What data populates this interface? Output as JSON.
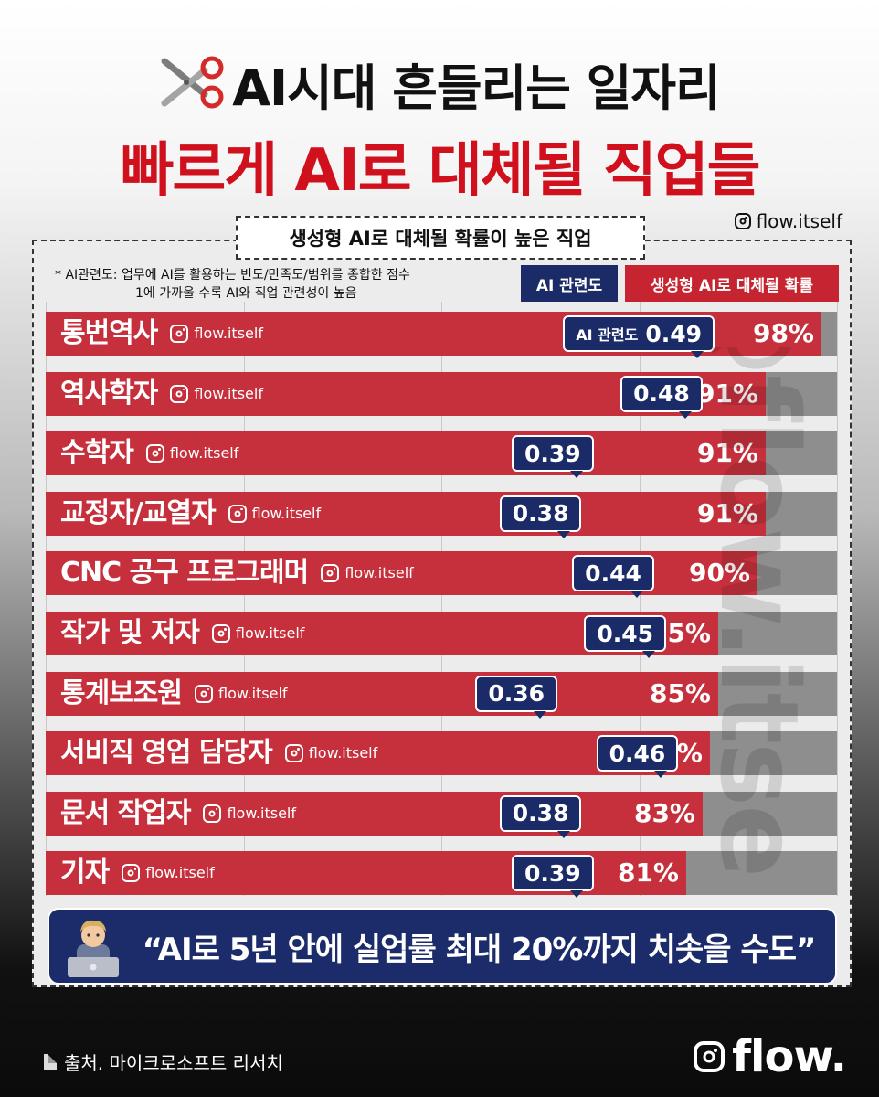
{
  "header": {
    "title_line1": "AI시대 흔들리는 일자리",
    "title_line2": "빠르게 AI로 대체될 직업들",
    "handle": "flow.itself",
    "scissors_icon": "scissors-icon"
  },
  "panel": {
    "subtitle": "생성형 AI로 대체될 확률이 높은 직업",
    "note_line1": "* AI관련도: 업무에 AI를 활용하는 빈도/만족도/범위를 종합한 점수",
    "note_line2": "1에 가까울 수록 AI와 직업 관련성이 높음",
    "col_ai_label": "AI 관련도",
    "col_prob_label": "생성형 AI로 대체될 확률",
    "first_badge_prefix": "AI 관련도",
    "row_tag": "flow.itself"
  },
  "chart_data": {
    "type": "bar",
    "title": "생성형 AI로 대체될 확률이 높은 직업",
    "categories": [
      "통번역사",
      "역사학자",
      "수학자",
      "교정자/교열자",
      "CNC 공구 프로그래머",
      "작가 및 저자",
      "통계보조원",
      "서비직 영업 담당자",
      "문서 작업자",
      "기자"
    ],
    "series": [
      {
        "name": "생성형 AI로 대체될 확률",
        "values": [
          98,
          91,
          91,
          91,
          90,
          85,
          85,
          84,
          83,
          81
        ]
      },
      {
        "name": "AI 관련도",
        "values": [
          0.49,
          0.48,
          0.39,
          0.38,
          0.44,
          0.45,
          0.36,
          0.46,
          0.38,
          0.39
        ]
      }
    ],
    "value_labels": [
      "98%",
      "91%",
      "91%",
      "91%",
      "90%",
      "85%",
      "85%",
      "84%",
      "83%",
      "81%"
    ],
    "ai_labels": [
      "0.49",
      "0.48",
      "0.39",
      "0.38",
      "0.44",
      "0.45",
      "0.36",
      "0.46",
      "0.38",
      "0.39"
    ],
    "ylim": [
      0,
      100
    ],
    "legend": "top-right"
  },
  "quote": {
    "text": "“AI로 5년 안에 실업률 최대 20%까지 치솟을 수도”",
    "avatar_icon": "person-laptop-icon"
  },
  "footer": {
    "source": "출처. 마이크로소프트 리서치",
    "logo_text": "flow.",
    "watermark": "@flow.itself"
  },
  "colors": {
    "red": "#c6303c",
    "title_red": "#d0101c",
    "navy": "#1a2b68",
    "bar_track": "#8e8e8e"
  }
}
